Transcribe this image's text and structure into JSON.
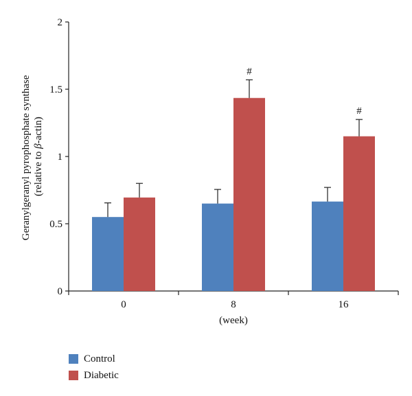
{
  "chart_data": {
    "type": "bar",
    "xlabel": "(week)",
    "ylabel_line1": "Geranylgeranyl pyrophosphate synthase",
    "ylabel_line2_prefix": "(relative to ",
    "ylabel_line2_greek": "β",
    "ylabel_line2_suffix": "-actin)",
    "ylim": [
      0,
      2
    ],
    "yticks": [
      "0",
      "0.5",
      "1",
      "1.5",
      "2"
    ],
    "ytick_values": [
      0,
      0.5,
      1,
      1.5,
      2
    ],
    "categories": [
      "0",
      "8",
      "16"
    ],
    "series": [
      {
        "name": "Control",
        "color": "#4f81bd",
        "values": [
          0.55,
          0.65,
          0.665
        ],
        "errors": [
          0.105,
          0.105,
          0.105
        ]
      },
      {
        "name": "Diabetic",
        "color": "#c0504d",
        "values": [
          0.695,
          1.435,
          1.15
        ],
        "errors": [
          0.105,
          0.135,
          0.125
        ]
      }
    ],
    "annotations": [
      {
        "category": "8",
        "series": "Diabetic",
        "text": "#"
      },
      {
        "category": "16",
        "series": "Diabetic",
        "text": "#"
      }
    ],
    "legend_placement": "bottom-left",
    "grid": false
  }
}
